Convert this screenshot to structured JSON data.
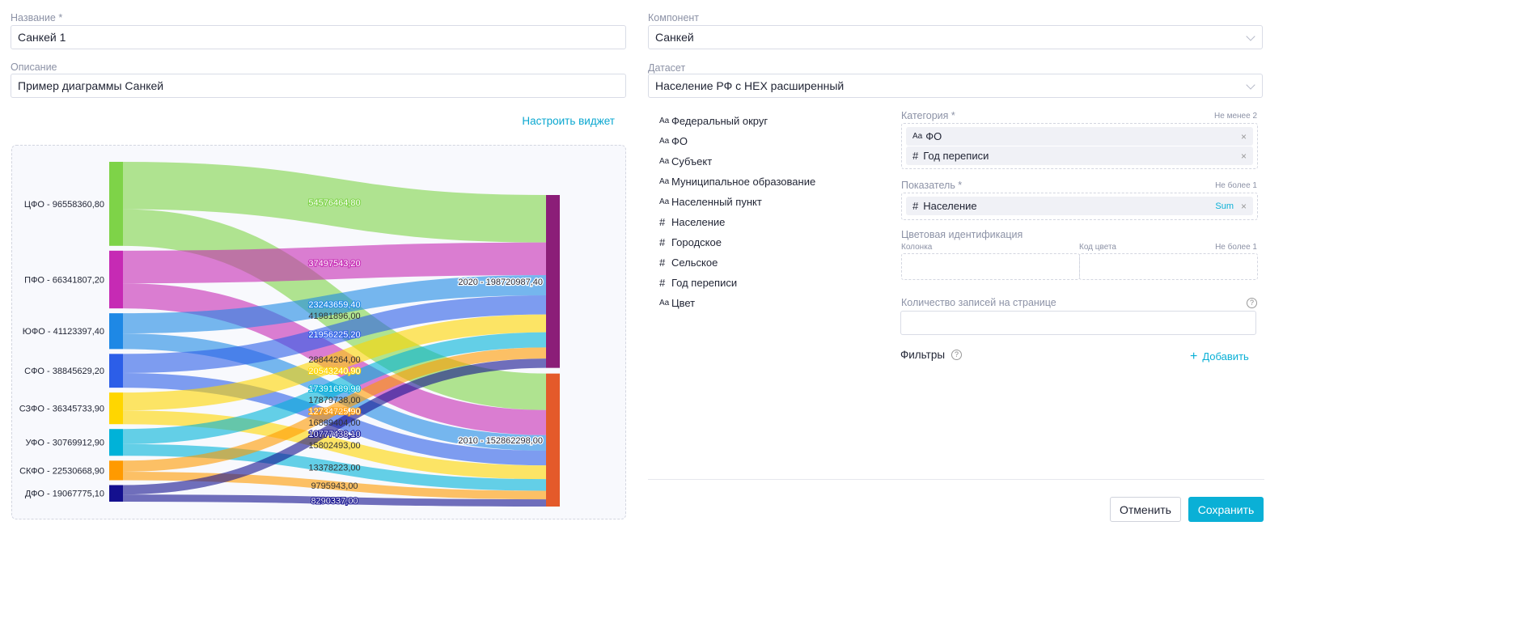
{
  "form": {
    "name_label": "Название *",
    "name_value": "Санкей 1",
    "desc_label": "Описание",
    "desc_value": "Пример диаграммы Санкей",
    "configure_link": "Настроить виджет",
    "component_label": "Компонент",
    "component_value": "Санкей",
    "dataset_label": "Датасет",
    "dataset_value": "Население РФ с HEX расширенный"
  },
  "fields": [
    {
      "type": "Aa",
      "label": "Федеральный округ"
    },
    {
      "type": "Aa",
      "label": "ФО"
    },
    {
      "type": "Aa",
      "label": "Субъект"
    },
    {
      "type": "Aa",
      "label": "Муниципальное образование"
    },
    {
      "type": "Aa",
      "label": "Населенный пункт"
    },
    {
      "type": "#",
      "label": "Население"
    },
    {
      "type": "#",
      "label": "Городское"
    },
    {
      "type": "#",
      "label": "Сельское"
    },
    {
      "type": "#",
      "label": "Год переписи"
    },
    {
      "type": "Aa",
      "label": "Цвет"
    }
  ],
  "settings": {
    "category_label": "Категория *",
    "category_hint": "Не менее 2",
    "category_items": [
      {
        "type": "Aa",
        "label": "ФО"
      },
      {
        "type": "#",
        "label": "Год переписи"
      }
    ],
    "measure_label": "Показатель *",
    "measure_hint": "Не более 1",
    "measure_item": {
      "type": "#",
      "label": "Население",
      "agg": "Sum"
    },
    "color_label": "Цветовая идентификация",
    "color_column": "Колонка",
    "color_code": "Код цвета",
    "color_hint": "Не более 1",
    "page_size_label": "Количество записей на странице",
    "page_size_value": "",
    "filters_label": "Фильтры",
    "add_label": "Добавить",
    "cancel": "Отменить",
    "save": "Сохранить"
  },
  "colors": {
    "accent": "#0ab0d6"
  },
  "chart_data": {
    "type": "sankey",
    "nodes": [
      {
        "name": "ЦФО",
        "value": 96558360.8,
        "color": "#7ed348"
      },
      {
        "name": "ПФО",
        "value": 66341807.2,
        "color": "#c62ab4"
      },
      {
        "name": "ЮФО",
        "value": 41123397.4,
        "color": "#1e88e5"
      },
      {
        "name": "СФО",
        "value": 38845629.2,
        "color": "#2c5ee8"
      },
      {
        "name": "СЗФО",
        "value": 36345733.9,
        "color": "#ffd600"
      },
      {
        "name": "УФО",
        "value": 30769912.9,
        "color": "#00b2d8"
      },
      {
        "name": "СКФО",
        "value": 22530668.9,
        "color": "#ff9a00"
      },
      {
        "name": "ДФО",
        "value": 19067775.1,
        "color": "#14108f"
      },
      {
        "name": "2020",
        "value": 198720987.4,
        "color": "#8b1e78"
      },
      {
        "name": "2010",
        "value": 152862298.0,
        "color": "#e45a2a"
      }
    ],
    "links": [
      {
        "source": "ЦФО",
        "target": "2020",
        "value": 54576464.8
      },
      {
        "source": "ЦФО",
        "target": "2010",
        "value": 41981896.0
      },
      {
        "source": "ПФО",
        "target": "2020",
        "value": 37497543.2
      },
      {
        "source": "ПФО",
        "target": "2010",
        "value": 28844264.0
      },
      {
        "source": "ЮФО",
        "target": "2020",
        "value": 23243659.4
      },
      {
        "source": "ЮФО",
        "target": "2010",
        "value": 17879738.0
      },
      {
        "source": "СФО",
        "target": "2020",
        "value": 21956225.2
      },
      {
        "source": "СФО",
        "target": "2010",
        "value": 16889404.0
      },
      {
        "source": "СЗФО",
        "target": "2020",
        "value": 20543240.9
      },
      {
        "source": "СЗФО",
        "target": "2010",
        "value": 15802493.0
      },
      {
        "source": "УФО",
        "target": "2020",
        "value": 17391689.9
      },
      {
        "source": "УФО",
        "target": "2010",
        "value": 13378223.0
      },
      {
        "source": "СКФО",
        "target": "2020",
        "value": 12734725.9
      },
      {
        "source": "СКФО",
        "target": "2010",
        "value": 9795943.0
      },
      {
        "source": "ДФО",
        "target": "2020",
        "value": 10777438.1
      },
      {
        "source": "ДФО",
        "target": "2010",
        "value": 8290337.0
      }
    ]
  }
}
